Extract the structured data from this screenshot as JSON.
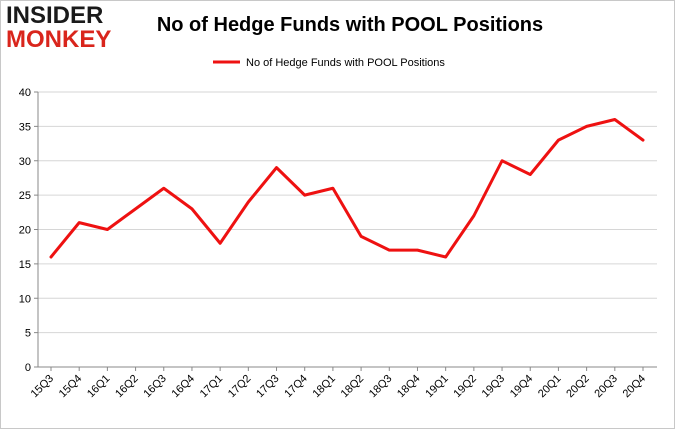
{
  "logo": {
    "line1": "INSIDER",
    "line2": "MONKEY"
  },
  "chart_data": {
    "type": "line",
    "title": "No of Hedge Funds with POOL Positions",
    "categories": [
      "15Q3",
      "15Q4",
      "16Q1",
      "16Q2",
      "16Q3",
      "16Q4",
      "17Q1",
      "17Q2",
      "17Q3",
      "17Q4",
      "18Q1",
      "18Q2",
      "18Q3",
      "18Q4",
      "19Q1",
      "19Q2",
      "19Q3",
      "19Q4",
      "20Q1",
      "20Q2",
      "20Q3",
      "20Q4"
    ],
    "series": [
      {
        "name": "No of Hedge Funds with POOL Positions",
        "values": [
          16,
          21,
          20,
          23,
          26,
          23,
          18,
          24,
          29,
          25,
          26,
          19,
          17,
          17,
          16,
          22,
          30,
          28,
          33,
          35,
          36,
          33
        ]
      }
    ],
    "ylim": [
      0,
      40
    ],
    "yticks": [
      0,
      5,
      10,
      15,
      20,
      25,
      30,
      35,
      40
    ],
    "grid": true,
    "legend": "top-center",
    "color": "#ee1111"
  }
}
